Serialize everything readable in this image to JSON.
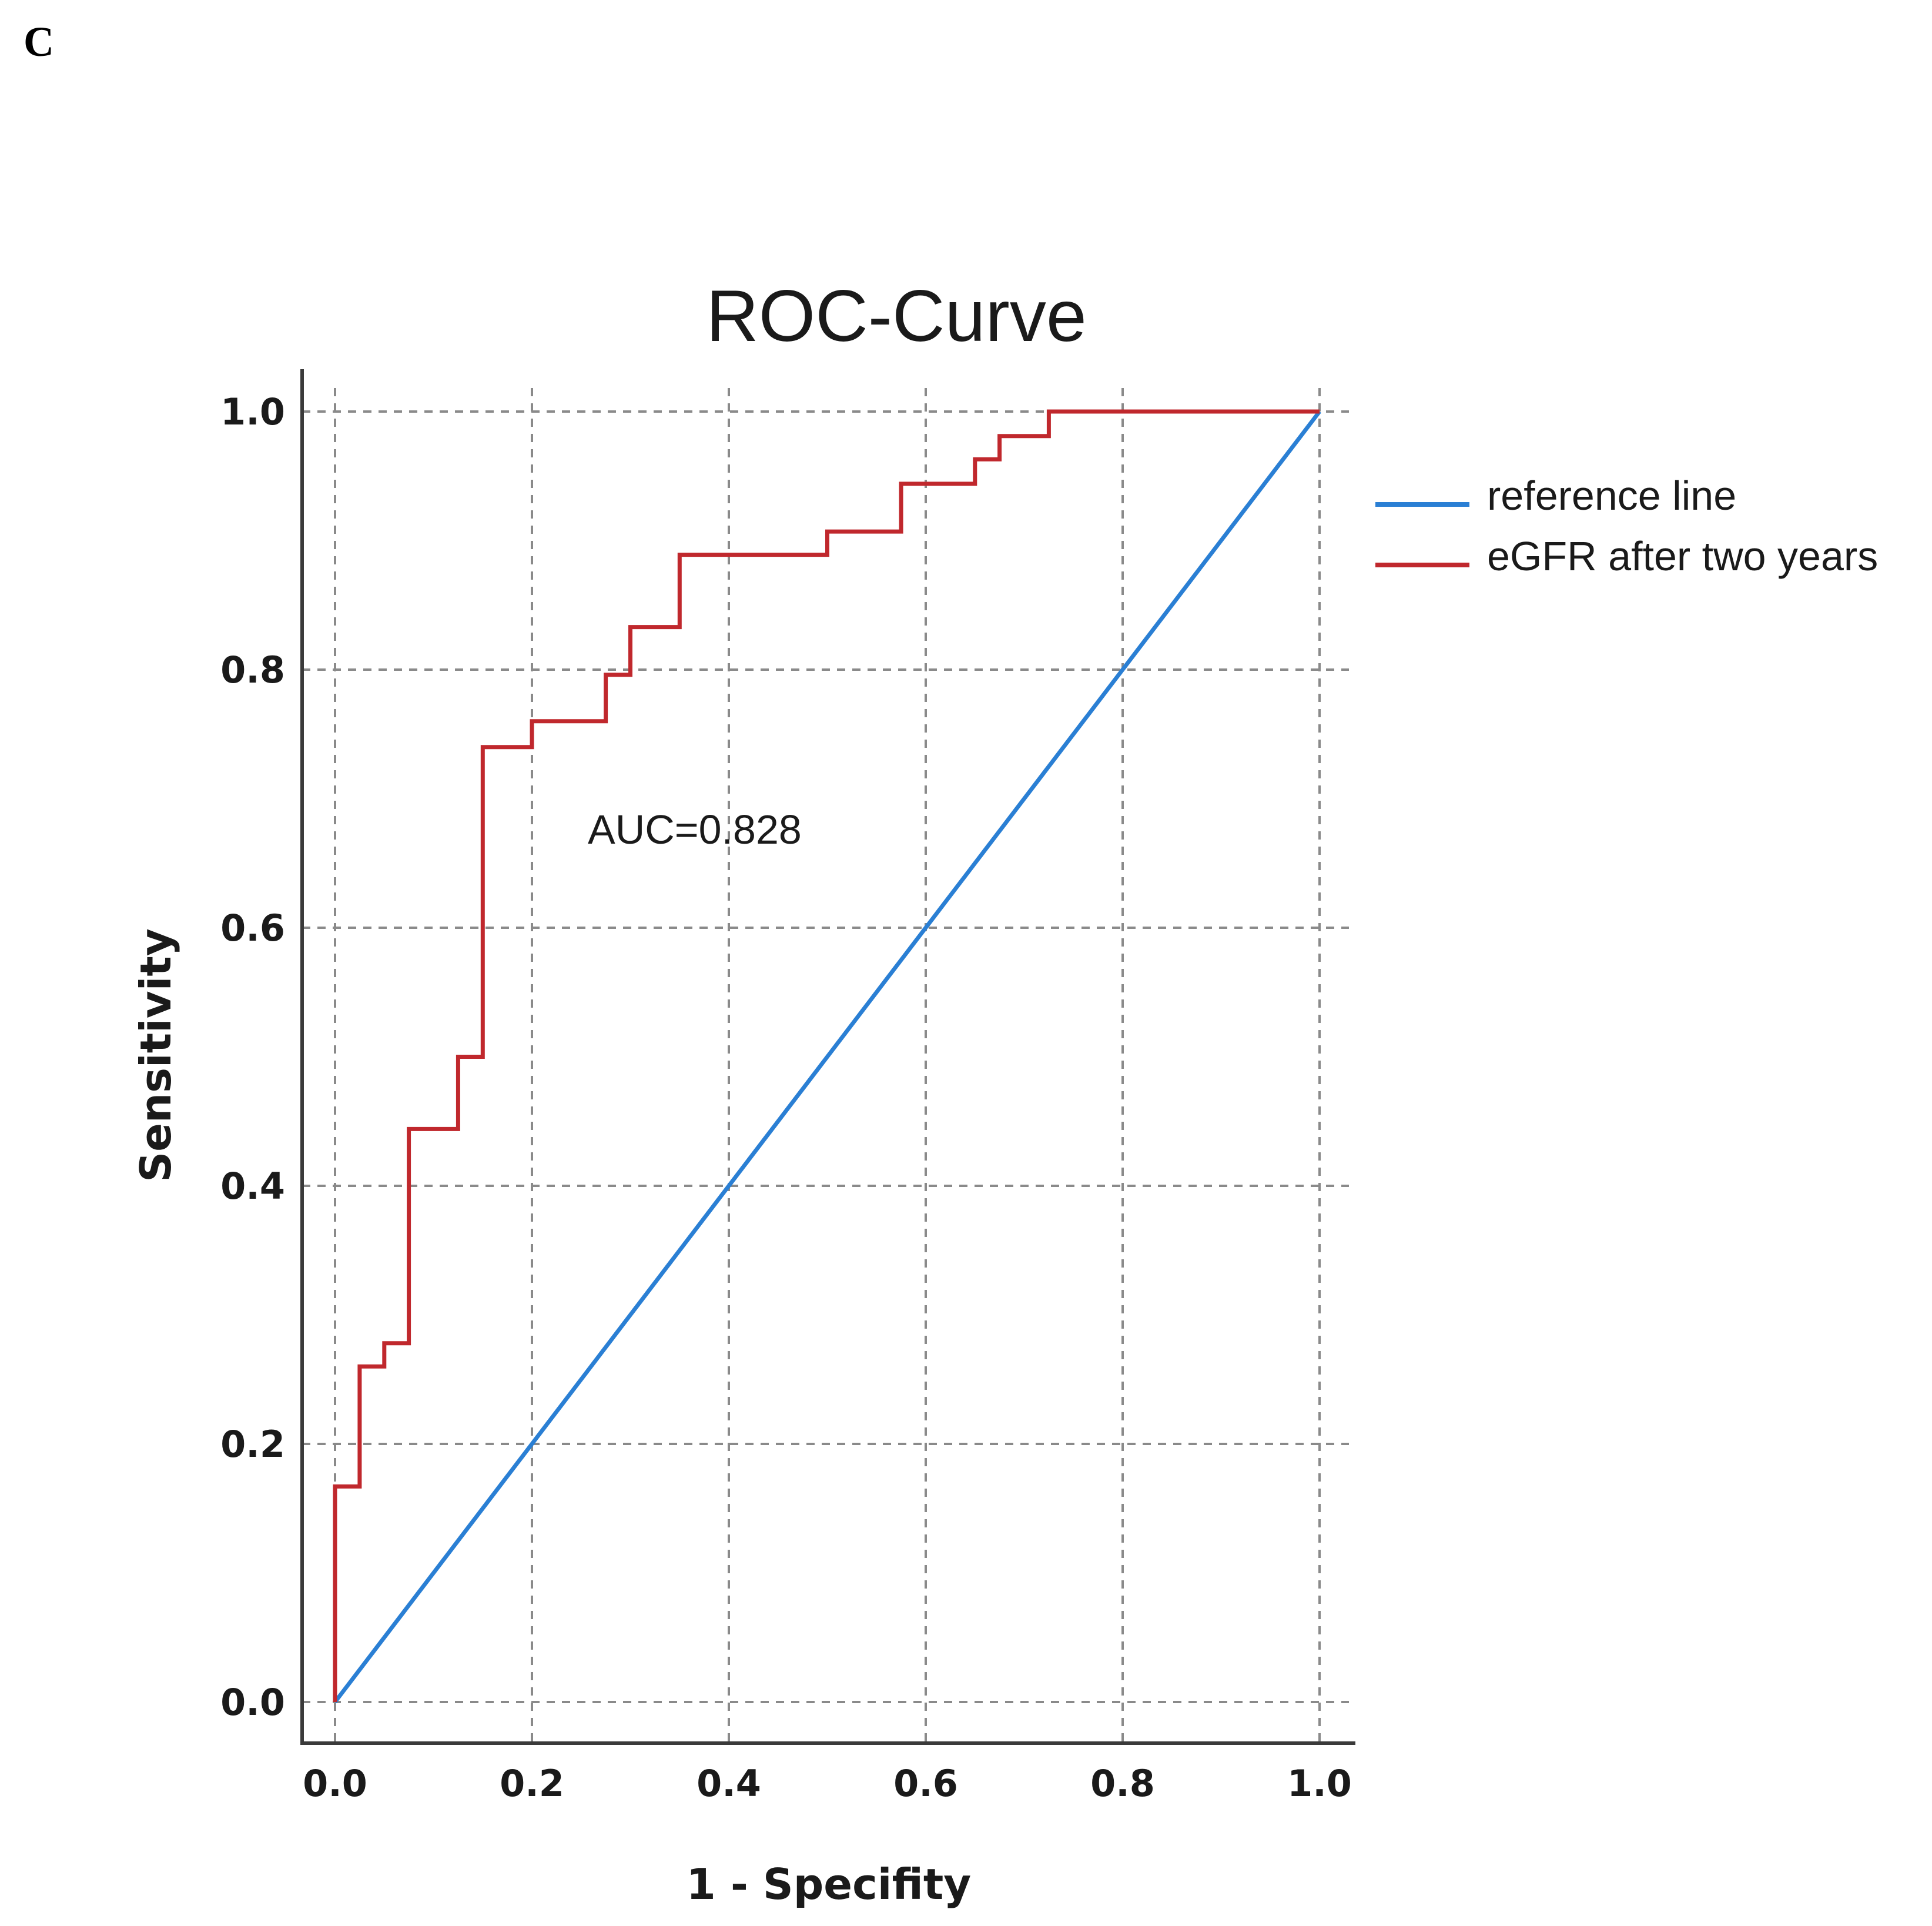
{
  "panel_label": "C",
  "chart_data": {
    "type": "line",
    "title": "ROC-Curve",
    "xlabel": "1 - Specifity",
    "ylabel": "Sensitivity",
    "xlim": [
      0.0,
      1.0
    ],
    "ylim": [
      0.0,
      1.0
    ],
    "x_ticks": [
      "0.0",
      "0.2",
      "0.4",
      "0.6",
      "0.8",
      "1.0"
    ],
    "y_ticks": [
      "0.0",
      "0.2",
      "0.4",
      "0.6",
      "0.8",
      "1.0"
    ],
    "grid": true,
    "legend_position": "right",
    "annotation": "AUC=0.828",
    "series": [
      {
        "name": "reference line",
        "color": "#2a7fd4",
        "x": [
          0.0,
          1.0
        ],
        "y": [
          0.0,
          1.0
        ]
      },
      {
        "name": "eGFR after two years",
        "color": "#c0282d",
        "x": [
          0.0,
          0.0,
          0.025,
          0.025,
          0.05,
          0.05,
          0.075,
          0.075,
          0.125,
          0.125,
          0.15,
          0.15,
          0.2,
          0.2,
          0.275,
          0.275,
          0.3,
          0.3,
          0.35,
          0.35,
          0.5,
          0.5,
          0.575,
          0.575,
          0.65,
          0.65,
          0.675,
          0.675,
          0.725,
          0.725,
          1.0
        ],
        "y": [
          0.0,
          0.167,
          0.167,
          0.26,
          0.26,
          0.278,
          0.278,
          0.444,
          0.444,
          0.5,
          0.5,
          0.74,
          0.74,
          0.76,
          0.76,
          0.796,
          0.796,
          0.833,
          0.833,
          0.889,
          0.889,
          0.907,
          0.907,
          0.944,
          0.944,
          0.963,
          0.963,
          0.981,
          0.981,
          1.0,
          1.0
        ]
      }
    ]
  }
}
